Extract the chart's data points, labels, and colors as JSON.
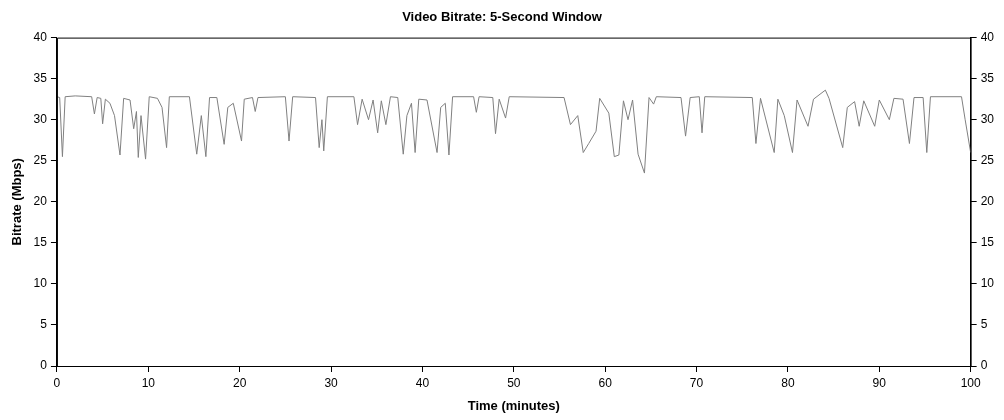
{
  "chart_data": {
    "type": "line",
    "title": "Video Bitrate: 5-Second Window",
    "xlabel": "Time (minutes)",
    "ylabel": "Bitrate (Mbps)",
    "xlim": [
      0,
      100
    ],
    "xticks": [
      0,
      10,
      20,
      30,
      40,
      50,
      60,
      70,
      80,
      90,
      100
    ],
    "ylim": [
      0,
      40
    ],
    "yticks": [
      0,
      5,
      10,
      15,
      20,
      25,
      30,
      35,
      40
    ],
    "y2lim": [
      0,
      40
    ],
    "y2ticks": [
      0,
      5,
      10,
      15,
      20,
      25,
      30,
      35,
      40
    ],
    "grid": false,
    "legend": false,
    "marker": "none",
    "line_style": "solid",
    "series": [
      {
        "color": "#808080",
        "x": [
          0,
          0.3,
          0.6,
          0.9,
          2,
          3.8,
          4.1,
          4.4,
          4.8,
          5.0,
          5.3,
          5.8,
          6.3,
          6.9,
          7.3,
          8.0,
          8.4,
          8.7,
          8.9,
          9.2,
          9.7,
          10.1,
          11.0,
          11.5,
          12.0,
          12.3,
          14.5,
          15.3,
          15.8,
          16.3,
          16.7,
          17.5,
          18.3,
          18.7,
          19.3,
          20.2,
          20.5,
          21.4,
          21.7,
          22.0,
          25.0,
          25.4,
          25.8,
          28.3,
          28.7,
          29.0,
          29.2,
          29.6,
          32.5,
          32.9,
          33.4,
          34.1,
          34.6,
          35.1,
          35.5,
          36.0,
          36.5,
          37.3,
          37.9,
          38.3,
          38.8,
          39.2,
          39.6,
          40.5,
          41.6,
          42.0,
          42.5,
          42.9,
          43.3,
          45.6,
          45.9,
          46.2,
          47.7,
          48.0,
          48.4,
          49.1,
          49.5,
          55.5,
          56.2,
          57.0,
          57.6,
          58.2,
          59.0,
          59.4,
          60.4,
          61.0,
          61.5,
          62.0,
          62.5,
          63.0,
          63.6,
          64.3,
          64.8,
          65.3,
          65.6,
          68.3,
          68.8,
          69.3,
          70.3,
          70.6,
          70.9,
          76.1,
          76.5,
          77.0,
          78.5,
          78.9,
          79.6,
          80.5,
          81.0,
          82.2,
          82.8,
          84.1,
          84.5,
          86.0,
          86.5,
          87.3,
          87.8,
          88.3,
          89.5,
          90.0,
          91.1,
          91.6,
          92.6,
          93.3,
          93.8,
          94.8,
          95.2,
          95.6,
          99.0,
          99.4,
          100
        ],
        "values": [
          32.8,
          32.7,
          25.5,
          32.8,
          32.9,
          32.8,
          30.7,
          32.7,
          32.6,
          29.5,
          32.5,
          32.0,
          30.5,
          25.7,
          32.6,
          32.4,
          28.9,
          31.0,
          25.4,
          30.5,
          25.2,
          32.8,
          32.6,
          31.5,
          26.6,
          32.8,
          32.8,
          25.8,
          30.5,
          25.5,
          32.7,
          32.7,
          27.0,
          31.5,
          32.0,
          27.4,
          32.5,
          32.7,
          31.0,
          32.7,
          32.8,
          27.4,
          32.8,
          32.7,
          26.6,
          30,
          26.2,
          32.8,
          32.8,
          29.4,
          32.5,
          30.0,
          32.4,
          28.4,
          32.3,
          29.4,
          32.8,
          32.7,
          25.8,
          30.5,
          32.0,
          26.0,
          32.5,
          32.4,
          26.0,
          31.5,
          32.0,
          25.7,
          32.8,
          32.8,
          30.9,
          32.8,
          32.7,
          28.3,
          32.5,
          30.2,
          32.8,
          32.7,
          29.4,
          30.5,
          26.0,
          27.1,
          28.6,
          32.6,
          30.8,
          25.5,
          25.7,
          32.3,
          30.0,
          32.4,
          25.8,
          23.5,
          32.7,
          31.9,
          32.8,
          32.7,
          28.0,
          32.7,
          32.8,
          28.4,
          32.8,
          32.7,
          27.1,
          32.6,
          26.0,
          32.5,
          30.5,
          26.0,
          32.4,
          29.2,
          32.5,
          33.6,
          32.6,
          26.6,
          31.5,
          32.2,
          29.2,
          32.3,
          29.2,
          32.4,
          30.0,
          32.6,
          32.5,
          27.1,
          32.7,
          32.7,
          26.0,
          32.8,
          32.8,
          30.0,
          26.0
        ]
      }
    ]
  }
}
